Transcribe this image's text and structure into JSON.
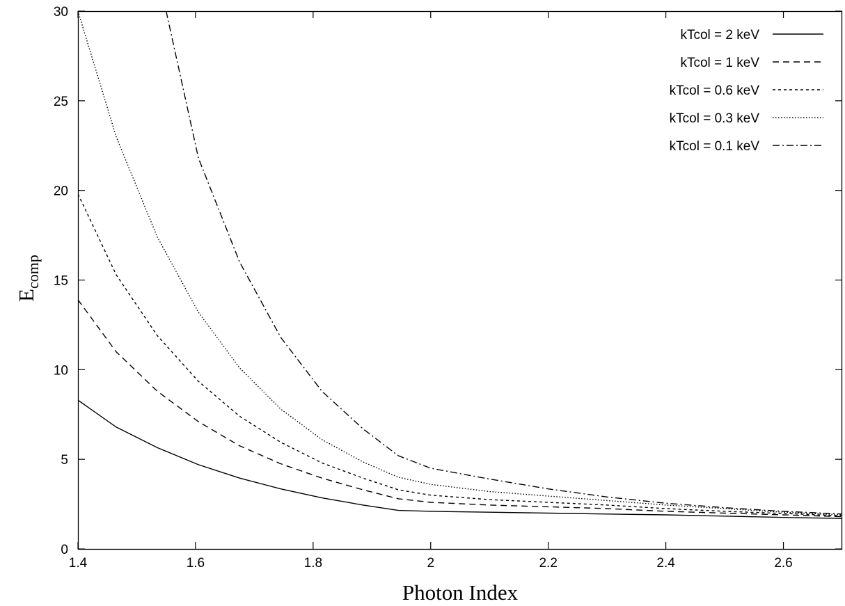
{
  "chart_data": {
    "type": "line",
    "xlabel": "Photon Index",
    "ylabel": "E",
    "ylabel_sub": "comp",
    "xlim": [
      1.4,
      2.7
    ],
    "ylim": [
      0,
      30
    ],
    "xticks": [
      "1.4",
      "1.6",
      "1.8",
      "2",
      "2.2",
      "2.4",
      "2.6"
    ],
    "yticks": [
      "0",
      "5",
      "10",
      "15",
      "20",
      "25",
      "30"
    ],
    "grid": false,
    "legend_position": "top-right",
    "series": [
      {
        "name": "kTcol = 2 keV",
        "dash": "solid",
        "x": [
          1.4,
          1.465,
          1.535,
          1.605,
          1.675,
          1.745,
          1.815,
          1.885,
          1.945,
          2.0,
          2.1,
          2.2,
          2.3,
          2.4,
          2.5,
          2.6,
          2.7
        ],
        "y": [
          8.3,
          6.8,
          5.65,
          4.7,
          3.95,
          3.35,
          2.85,
          2.45,
          2.15,
          2.1,
          2.05,
          2.0,
          1.95,
          1.9,
          1.83,
          1.76,
          1.7
        ]
      },
      {
        "name": "kTcol = 1 keV",
        "dash": "dashed",
        "x": [
          1.4,
          1.465,
          1.535,
          1.605,
          1.675,
          1.745,
          1.815,
          1.885,
          1.945,
          2.0,
          2.1,
          2.2,
          2.3,
          2.4,
          2.5,
          2.6,
          2.7
        ],
        "y": [
          13.9,
          11.0,
          8.8,
          7.1,
          5.75,
          4.75,
          3.95,
          3.3,
          2.8,
          2.6,
          2.45,
          2.35,
          2.25,
          2.1,
          2.0,
          1.9,
          1.8
        ]
      },
      {
        "name": "kTcol = 0.6 keV",
        "dash": "short-dashed",
        "x": [
          1.4,
          1.465,
          1.535,
          1.605,
          1.675,
          1.745,
          1.815,
          1.885,
          1.945,
          2.0,
          2.1,
          2.2,
          2.3,
          2.4,
          2.5,
          2.6,
          2.7
        ],
        "y": [
          19.8,
          15.3,
          11.9,
          9.35,
          7.4,
          5.95,
          4.8,
          3.95,
          3.3,
          3.0,
          2.75,
          2.6,
          2.45,
          2.25,
          2.1,
          1.98,
          1.85
        ]
      },
      {
        "name": "kTcol = 0.3 keV",
        "dash": "dotted",
        "x": [
          1.4,
          1.465,
          1.535,
          1.605,
          1.675,
          1.745,
          1.815,
          1.885,
          1.945,
          2.0,
          2.1,
          2.2,
          2.3,
          2.4,
          2.5,
          2.6,
          2.7
        ],
        "y": [
          30.0,
          23.0,
          17.4,
          13.2,
          10.1,
          7.8,
          6.1,
          4.85,
          4.0,
          3.6,
          3.2,
          2.95,
          2.7,
          2.45,
          2.25,
          2.05,
          1.9
        ]
      },
      {
        "name": "kTcol = 0.1 keV",
        "dash": "dash-dot",
        "x": [
          1.55,
          1.605,
          1.675,
          1.745,
          1.815,
          1.885,
          1.945,
          2.0,
          2.1,
          2.2,
          2.3,
          2.4,
          2.5,
          2.6,
          2.7
        ],
        "y": [
          30.0,
          21.8,
          16.0,
          11.8,
          8.8,
          6.7,
          5.2,
          4.5,
          3.9,
          3.35,
          2.9,
          2.55,
          2.3,
          2.1,
          1.95
        ]
      }
    ]
  }
}
